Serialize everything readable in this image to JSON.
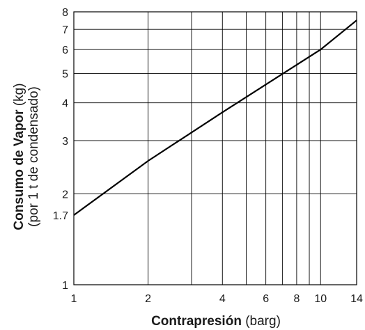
{
  "chart_data": {
    "type": "line",
    "title": "",
    "xlabel": {
      "bold": "Contrapresión",
      "normal": " (barg)"
    },
    "ylabel": {
      "bold": "Consumo de Vapor",
      "normal": " (kg)",
      "line2": "(por 1 t de condensado)"
    },
    "x_scale": "log",
    "y_scale": "log",
    "xlim": [
      1,
      14
    ],
    "ylim": [
      1,
      8
    ],
    "x_gridlines": [
      1,
      2,
      3,
      4,
      5,
      6,
      7,
      8,
      9,
      10,
      14
    ],
    "y_gridlines": [
      1,
      2,
      3,
      4,
      5,
      6,
      7,
      8
    ],
    "x_tick_labels": [
      {
        "value": 1,
        "label": "1"
      },
      {
        "value": 2,
        "label": "2"
      },
      {
        "value": 4,
        "label": "4"
      },
      {
        "value": 6,
        "label": "6"
      },
      {
        "value": 8,
        "label": "8"
      },
      {
        "value": 10,
        "label": "10"
      },
      {
        "value": 14,
        "label": "14"
      }
    ],
    "y_tick_labels": [
      {
        "value": 1,
        "label": "1"
      },
      {
        "value": 1.7,
        "label": "1.7"
      },
      {
        "value": 2,
        "label": "2"
      },
      {
        "value": 3,
        "label": "3"
      },
      {
        "value": 4,
        "label": "4"
      },
      {
        "value": 5,
        "label": "5"
      },
      {
        "value": 6,
        "label": "6"
      },
      {
        "value": 7,
        "label": "7"
      },
      {
        "value": 8,
        "label": "8"
      }
    ],
    "grid": true,
    "legend": "none",
    "series": [
      {
        "color": "#000000",
        "x": [
          1,
          2,
          4,
          10,
          14
        ],
        "y": [
          1.7,
          2.57,
          3.72,
          6.0,
          7.5
        ]
      }
    ]
  }
}
